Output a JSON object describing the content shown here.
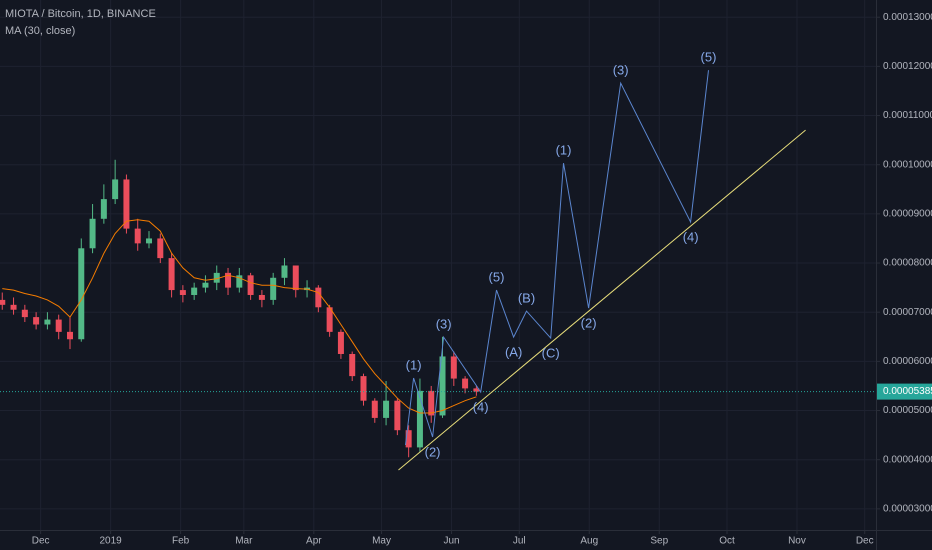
{
  "chart_data": {
    "type": "candlestick",
    "title": "MIOTA / Bitcoin, 1D, BINANCE",
    "subtitle": "MA (30, close)",
    "x": [
      -48,
      -43,
      -38,
      -33,
      -28,
      -23,
      -18,
      -13,
      -8,
      -3,
      2,
      7,
      12,
      17,
      22,
      27,
      32,
      37,
      42,
      47,
      52,
      57,
      62,
      67,
      72,
      77,
      82,
      87,
      92,
      97,
      102,
      107,
      112,
      117,
      122,
      127,
      132,
      137,
      142,
      147,
      152,
      157,
      162
    ],
    "open": [
      7.25e-05,
      7.15e-05,
      7.05e-05,
      6.9e-05,
      6.75e-05,
      6.85e-05,
      6.6e-05,
      6.45e-05,
      8.3e-05,
      8.9e-05,
      9.3e-05,
      9.7e-05,
      8.7e-05,
      8.4e-05,
      8.5e-05,
      8.1e-05,
      7.45e-05,
      7.35e-05,
      7.5e-05,
      7.6e-05,
      7.8e-05,
      7.5e-05,
      7.75e-05,
      7.35e-05,
      7.25e-05,
      7.7e-05,
      7.95e-05,
      7.45e-05,
      7.5e-05,
      7.1e-05,
      6.6e-05,
      6.15e-05,
      5.7e-05,
      5.2e-05,
      4.85e-05,
      5.2e-05,
      4.6e-05,
      4.25e-05,
      5.4e-05,
      4.9e-05,
      6.1e-05,
      5.65e-05,
      5.45e-05
    ],
    "high": [
      7.4e-05,
      7.3e-05,
      7.15e-05,
      7e-05,
      7e-05,
      6.95e-05,
      6.9e-05,
      8.5e-05,
      9.2e-05,
      9.6e-05,
      0.000101,
      9.8e-05,
      8.9e-05,
      8.65e-05,
      8.6e-05,
      8.2e-05,
      7.55e-05,
      7.6e-05,
      7.75e-05,
      7.95e-05,
      7.9e-05,
      7.9e-05,
      7.8e-05,
      7.45e-05,
      7.8e-05,
      8.1e-05,
      7.95e-05,
      7.65e-05,
      7.55e-05,
      7.15e-05,
      6.65e-05,
      6.2e-05,
      5.75e-05,
      5.25e-05,
      5.6e-05,
      5.25e-05,
      4.7e-05,
      5.65e-05,
      5.5e-05,
      6.5e-05,
      6.2e-05,
      5.7e-05,
      5.5e-05
    ],
    "low": [
      7.05e-05,
      6.95e-05,
      6.8e-05,
      6.65e-05,
      6.65e-05,
      6.45e-05,
      6.25e-05,
      6.4e-05,
      8.2e-05,
      8.8e-05,
      9.2e-05,
      8.6e-05,
      8.25e-05,
      8.3e-05,
      8e-05,
      7.3e-05,
      7.2e-05,
      7.25e-05,
      7.4e-05,
      7.45e-05,
      7.35e-05,
      7.4e-05,
      7.25e-05,
      7.1e-05,
      7.15e-05,
      7.55e-05,
      7.3e-05,
      7.3e-05,
      7e-05,
      6.5e-05,
      6.05e-05,
      5.6e-05,
      5.1e-05,
      4.75e-05,
      4.7e-05,
      4.5e-05,
      4.05e-05,
      4.15e-05,
      4.75e-05,
      4.85e-05,
      5.5e-05,
      5.35e-05,
      5.3e-05
    ],
    "close": [
      7.15e-05,
      7.05e-05,
      6.9e-05,
      6.75e-05,
      6.85e-05,
      6.6e-05,
      6.45e-05,
      8.3e-05,
      8.9e-05,
      9.3e-05,
      9.7e-05,
      8.7e-05,
      8.4e-05,
      8.5e-05,
      8.1e-05,
      7.45e-05,
      7.35e-05,
      7.5e-05,
      7.6e-05,
      7.8e-05,
      7.5e-05,
      7.75e-05,
      7.35e-05,
      7.25e-05,
      7.7e-05,
      7.95e-05,
      7.45e-05,
      7.5e-05,
      7.1e-05,
      6.6e-05,
      6.15e-05,
      5.7e-05,
      5.2e-05,
      4.85e-05,
      5.2e-05,
      4.6e-05,
      4.25e-05,
      5.4e-05,
      4.9e-05,
      6.1e-05,
      5.65e-05,
      5.45e-05,
      5.385e-05
    ],
    "up_color": "#53b987",
    "down_color": "#eb4d5c",
    "ma": {
      "color": "#f57c00",
      "values": [
        7.48e-05,
        7.45e-05,
        7.38e-05,
        7.33e-05,
        7.25e-05,
        7.12e-05,
        6.9e-05,
        7.25e-05,
        7.7e-05,
        8.2e-05,
        8.6e-05,
        8.85e-05,
        8.88e-05,
        8.85e-05,
        8.65e-05,
        8.2e-05,
        7.9e-05,
        7.7e-05,
        7.65e-05,
        7.68e-05,
        7.75e-05,
        7.7e-05,
        7.6e-05,
        7.55e-05,
        7.55e-05,
        7.5e-05,
        7.48e-05,
        7.47e-05,
        7.4e-05,
        7.1e-05,
        6.75e-05,
        6.4e-05,
        6.05e-05,
        5.75e-05,
        5.5e-05,
        5.25e-05,
        5.05e-05,
        4.95e-05,
        4.95e-05,
        5e-05,
        5.1e-05,
        5.2e-05,
        5.28e-05
      ]
    },
    "last_price": {
      "value": 5.385e-05,
      "label": "0.00005385",
      "color": "#26a69a"
    },
    "waves": {
      "color": "#5b86cf",
      "label_color": "#86a8e8",
      "points": [
        {
          "x": 130.6,
          "y": 4.299e-05
        },
        {
          "x": 134.2,
          "y": 5.661e-05,
          "label": "(1)"
        },
        {
          "x": 142.6,
          "y": 4.461e-05,
          "label": "(2)"
        },
        {
          "x": 147.5,
          "y": 6.494e-05,
          "label": "(3)"
        },
        {
          "x": 163.9,
          "y": 5.376e-05,
          "label": "(4)"
        },
        {
          "x": 170.9,
          "y": 7.45e-05,
          "label": "(5)"
        },
        {
          "x": 178.5,
          "y": 6.494e-05,
          "label": "(A)"
        },
        {
          "x": 184.2,
          "y": 7.023e-05,
          "label": "(B)"
        },
        {
          "x": 194.9,
          "y": 6.474e-05,
          "label": "(C)"
        },
        {
          "x": 200.6,
          "y": 0.00010032,
          "label": "(1)"
        },
        {
          "x": 211.7,
          "y": 7.084e-05,
          "label": "(2)"
        },
        {
          "x": 225.9,
          "y": 0.00011658,
          "label": "(3)"
        },
        {
          "x": 256.9,
          "y": 8.832e-05,
          "label": "(4)"
        },
        {
          "x": 264.8,
          "y": 0.00011922,
          "label": "(5)"
        }
      ]
    },
    "trendline": {
      "color": "#e6dc7a",
      "x": [
        127.5,
        307.8
      ],
      "y": [
        3.79e-05,
        0.00010703
      ]
    },
    "xlim": [
      -49,
      339
    ],
    "ylim": [
      2.57e-05,
      0.0001335
    ],
    "xticks": [
      {
        "value": -31,
        "label": "Dec"
      },
      {
        "value": 0,
        "label": "2019"
      },
      {
        "value": 31,
        "label": "Feb"
      },
      {
        "value": 59,
        "label": "Mar"
      },
      {
        "value": 90,
        "label": "Apr"
      },
      {
        "value": 120,
        "label": "May"
      },
      {
        "value": 151,
        "label": "Jun"
      },
      {
        "value": 181,
        "label": "Jul"
      },
      {
        "value": 212,
        "label": "Aug"
      },
      {
        "value": 243,
        "label": "Sep"
      },
      {
        "value": 273,
        "label": "Oct"
      },
      {
        "value": 304,
        "label": "Nov"
      },
      {
        "value": 334,
        "label": "Dec"
      }
    ],
    "yticks": [
      {
        "value": 3e-05,
        "label": "0.00003000"
      },
      {
        "value": 4e-05,
        "label": "0.00004000"
      },
      {
        "value": 5e-05,
        "label": "0.00005000"
      },
      {
        "value": 6e-05,
        "label": "0.00006000"
      },
      {
        "value": 7e-05,
        "label": "0.00007000"
      },
      {
        "value": 8e-05,
        "label": "0.00008000"
      },
      {
        "value": 9e-05,
        "label": "0.00009000"
      },
      {
        "value": 0.0001,
        "label": "0.00010000"
      },
      {
        "value": 0.00011,
        "label": "0.00011000"
      },
      {
        "value": 0.00012,
        "label": "0.00012000"
      },
      {
        "value": 0.00013,
        "label": "0.00013000"
      }
    ],
    "grid": true
  }
}
